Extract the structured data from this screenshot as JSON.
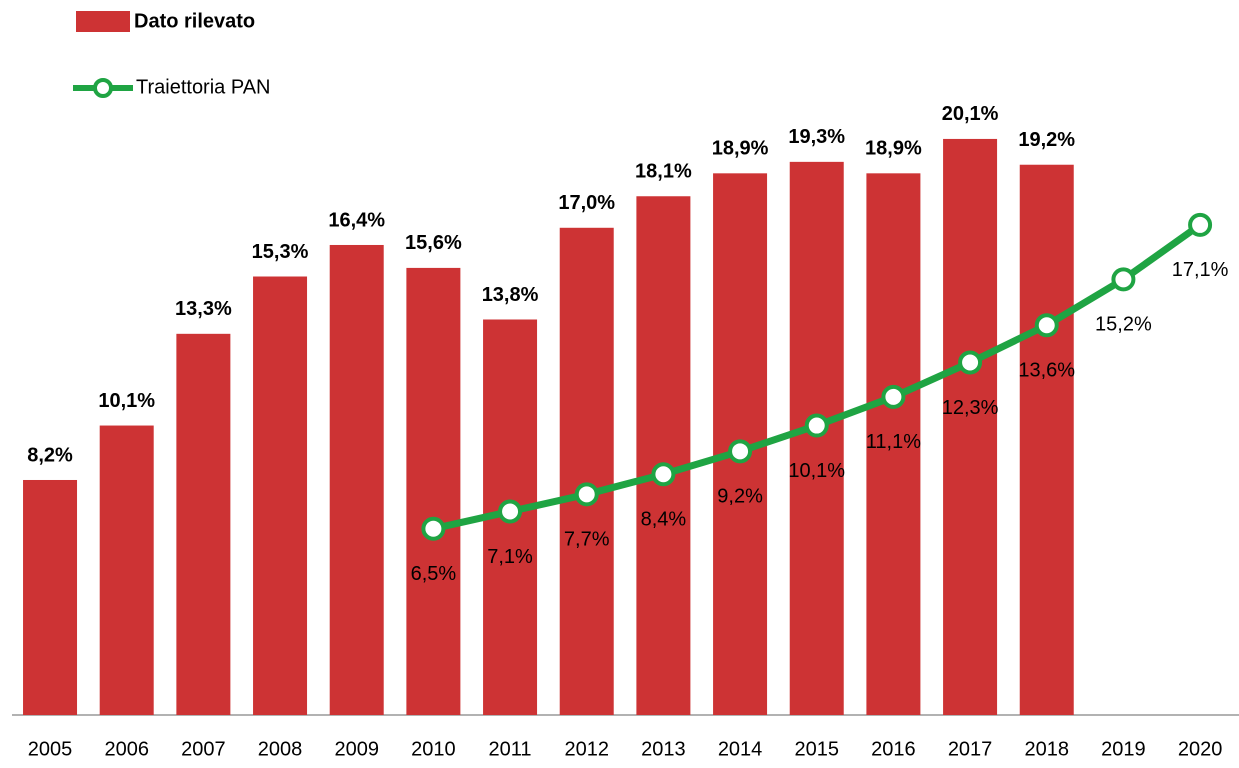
{
  "chart_data": {
    "type": "bar",
    "categories": [
      "2005",
      "2006",
      "2007",
      "2008",
      "2009",
      "2010",
      "2011",
      "2012",
      "2013",
      "2014",
      "2015",
      "2016",
      "2017",
      "2018",
      "2019",
      "2020"
    ],
    "series": [
      {
        "name": "Dato rilevato",
        "type": "bar",
        "color": "#cd3334",
        "values": [
          8.2,
          10.1,
          13.3,
          15.3,
          16.4,
          15.6,
          13.8,
          17.0,
          18.1,
          18.9,
          19.3,
          18.9,
          20.1,
          19.2,
          null,
          null
        ],
        "value_labels": [
          "8,2%",
          "10,1%",
          "13,3%",
          "15,3%",
          "16,4%",
          "15,6%",
          "13,8%",
          "17,0%",
          "18,1%",
          "18,9%",
          "19,3%",
          "18,9%",
          "20,1%",
          "19,2%",
          null,
          null
        ]
      },
      {
        "name": "Traiettoria PAN",
        "type": "line",
        "color": "#1fa443",
        "values": [
          null,
          null,
          null,
          null,
          null,
          6.5,
          7.1,
          7.7,
          8.4,
          9.2,
          10.1,
          11.1,
          12.3,
          13.6,
          15.2,
          17.1
        ],
        "value_labels": [
          null,
          null,
          null,
          null,
          null,
          "6,5%",
          "7,1%",
          "7,7%",
          "8,4%",
          "9,2%",
          "10,1%",
          "11,1%",
          "12,3%",
          "13,6%",
          "15,2%",
          "17,1%"
        ]
      }
    ]
  }
}
